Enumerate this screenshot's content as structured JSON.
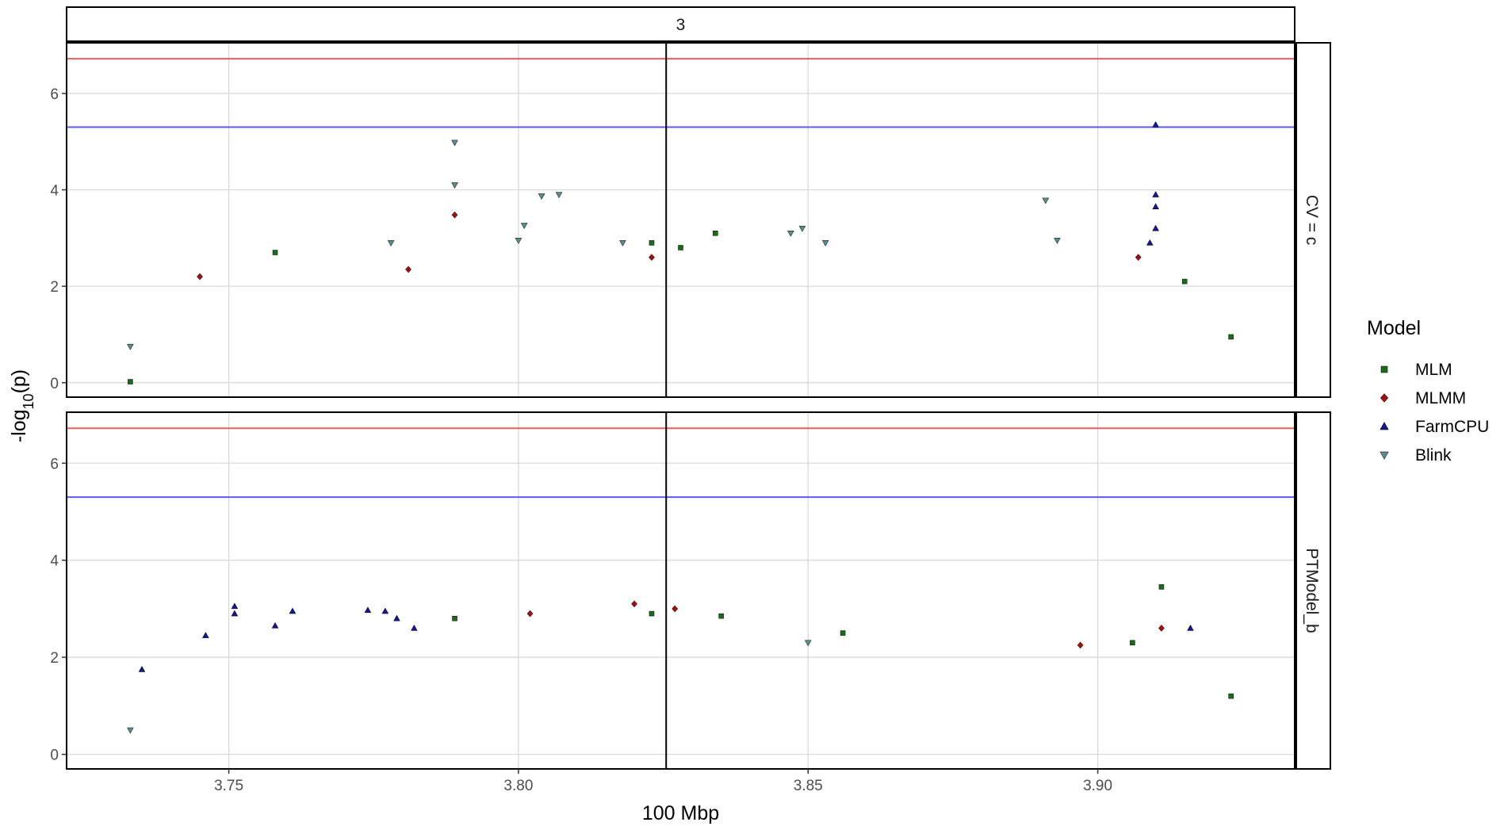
{
  "chart_data": {
    "type": "scatter",
    "title": "",
    "xlabel": "100 Mbp",
    "ylabel_prefix": "-log",
    "ylabel_sub": "10",
    "ylabel_suffix": "(p)",
    "facet_column_label": "3",
    "xlim": [
      3.722,
      3.934
    ],
    "ylim": [
      -0.3,
      7.05
    ],
    "x_ticks": [
      3.75,
      3.8,
      3.85,
      3.9
    ],
    "x_tick_labels": [
      "3.75",
      "3.80",
      "3.85",
      "3.90"
    ],
    "y_ticks": [
      0,
      2,
      4,
      6
    ],
    "y_tick_labels": [
      "0",
      "2",
      "4",
      "6"
    ],
    "grid": true,
    "reference_lines": {
      "horizontal": [
        {
          "y": 6.72,
          "color": "#ee5c5c"
        },
        {
          "y": 5.3,
          "color": "#5c5cee"
        }
      ],
      "vertical": [
        {
          "x": 3.8255,
          "color": "#000000"
        }
      ]
    },
    "legend": {
      "title": "Model",
      "position": "right",
      "entries": [
        {
          "name": "MLM",
          "shape": "square",
          "color": "#1b6b1b"
        },
        {
          "name": "MLMM",
          "shape": "diamond",
          "color": "#9b1010"
        },
        {
          "name": "FarmCPU",
          "shape": "triangle-up",
          "color": "#17178f"
        },
        {
          "name": "Blink",
          "shape": "triangle-down",
          "color": "#5a8d8d"
        }
      ]
    },
    "panels": [
      {
        "label": "CV = c",
        "points": [
          {
            "model": "Blink",
            "x": 3.789,
            "y": 4.98
          },
          {
            "model": "Blink",
            "x": 3.789,
            "y": 4.1
          },
          {
            "model": "MLMM",
            "x": 3.789,
            "y": 3.48
          },
          {
            "model": "Blink",
            "x": 3.804,
            "y": 3.87
          },
          {
            "model": "Blink",
            "x": 3.807,
            "y": 3.9
          },
          {
            "model": "Blink",
            "x": 3.801,
            "y": 3.26
          },
          {
            "model": "Blink",
            "x": 3.8,
            "y": 2.95
          },
          {
            "model": "Blink",
            "x": 3.818,
            "y": 2.9
          },
          {
            "model": "MLM",
            "x": 3.823,
            "y": 2.9
          },
          {
            "model": "MLMM",
            "x": 3.823,
            "y": 2.6
          },
          {
            "model": "MLM",
            "x": 3.834,
            "y": 3.1
          },
          {
            "model": "MLM",
            "x": 3.828,
            "y": 2.8
          },
          {
            "model": "Blink",
            "x": 3.849,
            "y": 3.2
          },
          {
            "model": "Blink",
            "x": 3.847,
            "y": 3.1
          },
          {
            "model": "Blink",
            "x": 3.853,
            "y": 2.9
          },
          {
            "model": "Blink",
            "x": 3.778,
            "y": 2.9
          },
          {
            "model": "MLM",
            "x": 3.758,
            "y": 2.7
          },
          {
            "model": "MLMM",
            "x": 3.781,
            "y": 2.35
          },
          {
            "model": "MLMM",
            "x": 3.745,
            "y": 2.2
          },
          {
            "model": "Blink",
            "x": 3.891,
            "y": 3.78
          },
          {
            "model": "Blink",
            "x": 3.893,
            "y": 2.95
          },
          {
            "model": "FarmCPU",
            "x": 3.91,
            "y": 5.35
          },
          {
            "model": "FarmCPU",
            "x": 3.91,
            "y": 3.9
          },
          {
            "model": "FarmCPU",
            "x": 3.91,
            "y": 3.65
          },
          {
            "model": "FarmCPU",
            "x": 3.91,
            "y": 3.2
          },
          {
            "model": "FarmCPU",
            "x": 3.909,
            "y": 2.9
          },
          {
            "model": "MLMM",
            "x": 3.907,
            "y": 2.6
          },
          {
            "model": "MLM",
            "x": 3.915,
            "y": 2.1
          },
          {
            "model": "MLM",
            "x": 3.923,
            "y": 0.95
          },
          {
            "model": "MLM",
            "x": 3.733,
            "y": 0.02
          },
          {
            "model": "Blink",
            "x": 3.733,
            "y": 0.75
          }
        ]
      },
      {
        "label": "PTModel_b",
        "points": [
          {
            "model": "FarmCPU",
            "x": 3.751,
            "y": 3.05
          },
          {
            "model": "FarmCPU",
            "x": 3.751,
            "y": 2.9
          },
          {
            "model": "FarmCPU",
            "x": 3.761,
            "y": 2.95
          },
          {
            "model": "FarmCPU",
            "x": 3.774,
            "y": 2.97
          },
          {
            "model": "FarmCPU",
            "x": 3.777,
            "y": 2.95
          },
          {
            "model": "FarmCPU",
            "x": 3.779,
            "y": 2.8
          },
          {
            "model": "FarmCPU",
            "x": 3.782,
            "y": 2.6
          },
          {
            "model": "FarmCPU",
            "x": 3.746,
            "y": 2.45
          },
          {
            "model": "FarmCPU",
            "x": 3.758,
            "y": 2.65
          },
          {
            "model": "MLM",
            "x": 3.789,
            "y": 2.8
          },
          {
            "model": "MLMM",
            "x": 3.802,
            "y": 2.9
          },
          {
            "model": "MLMM",
            "x": 3.82,
            "y": 3.1
          },
          {
            "model": "MLM",
            "x": 3.823,
            "y": 2.9
          },
          {
            "model": "MLMM",
            "x": 3.827,
            "y": 3.0
          },
          {
            "model": "MLM",
            "x": 3.835,
            "y": 2.85
          },
          {
            "model": "MLM",
            "x": 3.856,
            "y": 2.5
          },
          {
            "model": "Blink",
            "x": 3.85,
            "y": 2.3
          },
          {
            "model": "MLM",
            "x": 3.911,
            "y": 3.45
          },
          {
            "model": "MLMM",
            "x": 3.911,
            "y": 2.6
          },
          {
            "model": "FarmCPU",
            "x": 3.916,
            "y": 2.6
          },
          {
            "model": "MLM",
            "x": 3.906,
            "y": 2.3
          },
          {
            "model": "MLMM",
            "x": 3.897,
            "y": 2.25
          },
          {
            "model": "FarmCPU",
            "x": 3.735,
            "y": 1.75
          },
          {
            "model": "MLM",
            "x": 3.923,
            "y": 1.2
          },
          {
            "model": "Blink",
            "x": 3.733,
            "y": 0.5
          }
        ]
      }
    ]
  }
}
